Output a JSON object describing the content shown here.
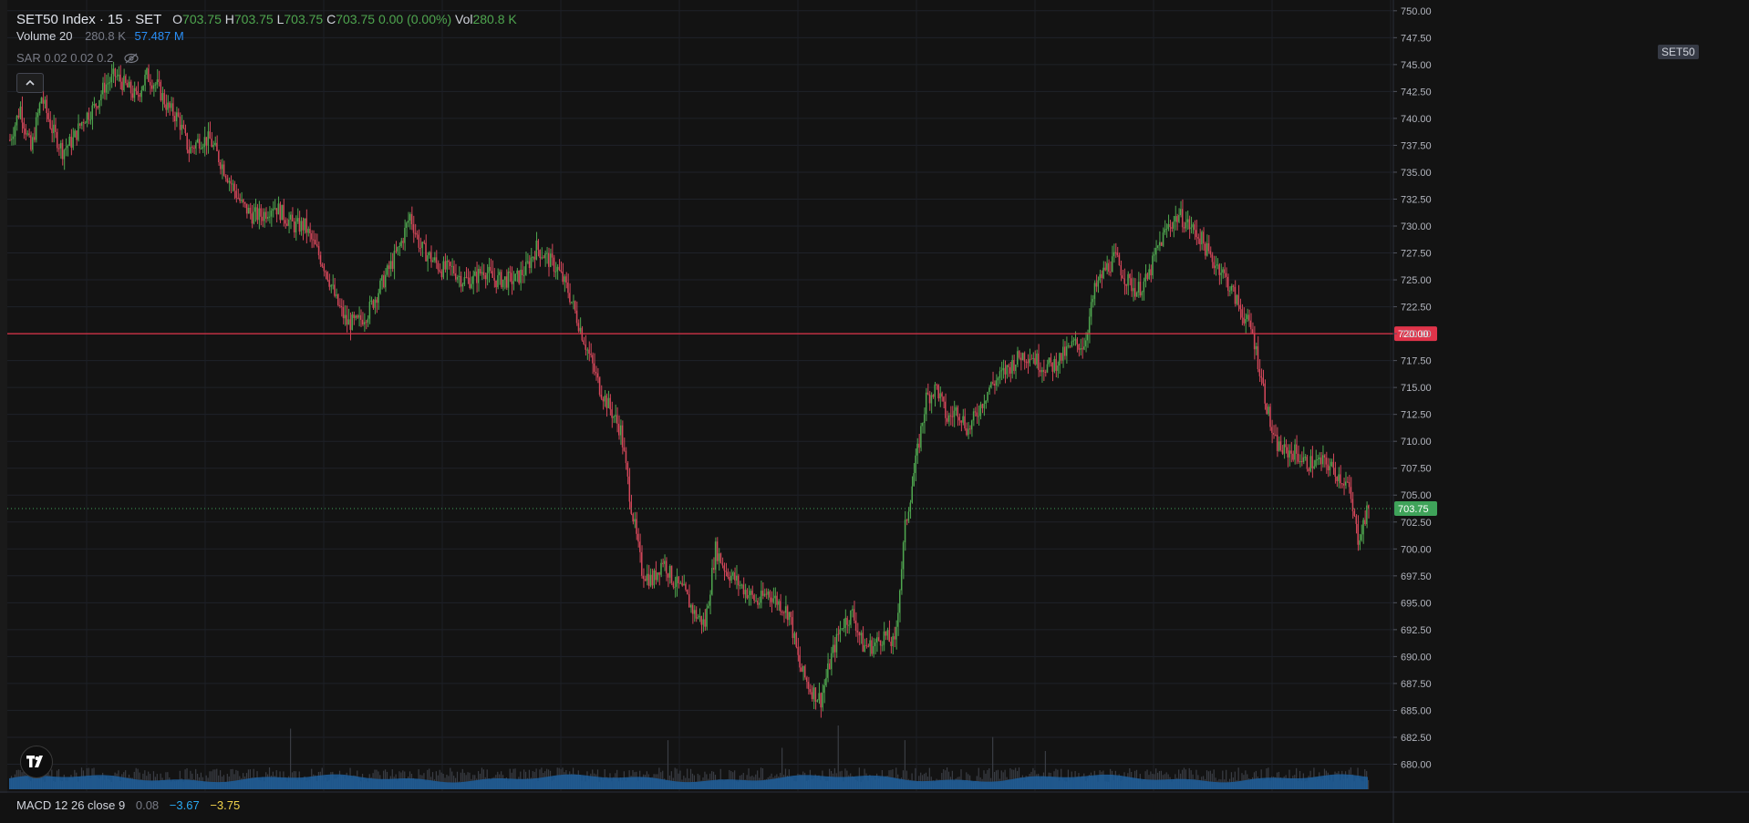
{
  "header": {
    "symbol": "SET50 Index · 15 · SET",
    "open_label": "O",
    "open": "703.75",
    "high_label": "H",
    "high": "703.75",
    "low_label": "L",
    "low": "703.75",
    "close_label": "C",
    "close": "703.75",
    "change": "0.00 (0.00%)",
    "vol_label": "Vol",
    "vol": "280.8 K"
  },
  "volume_indicator": {
    "name": "Volume 20",
    "value": "280.8 K",
    "ma": "57.487 M"
  },
  "sar_indicator": {
    "name": "SAR 0.02 0.02 0.2"
  },
  "macd_indicator": {
    "name": "MACD 12 26 close 9",
    "v1": "0.08",
    "v2": "−3.67",
    "v3": "−3.75"
  },
  "price_scale": {
    "symbol_tag": "SET50",
    "level_label": "720.00",
    "last_label": "703.75"
  },
  "colors": {
    "up": "#4fa64f",
    "down": "#d3475a",
    "hline": "#e0344a",
    "volume_ma": "#1e5f9c",
    "last": "#3fa35a"
  },
  "chart_data": {
    "type": "candlestick",
    "ylim": [
      677.5,
      751
    ],
    "yticks": [
      "750.00",
      "747.50",
      "745.00",
      "742.50",
      "740.00",
      "737.50",
      "735.00",
      "732.50",
      "730.00",
      "727.50",
      "725.00",
      "722.50",
      "720.00",
      "717.50",
      "715.00",
      "712.50",
      "710.00",
      "707.50",
      "705.00",
      "702.50",
      "700.00",
      "697.50",
      "695.00",
      "692.50",
      "690.00",
      "687.50",
      "685.00",
      "682.50",
      "680.00"
    ],
    "horizontal_line": 720.0,
    "last_price": 703.75,
    "close_path": [
      [
        0,
        738
      ],
      [
        6,
        741
      ],
      [
        12,
        737
      ],
      [
        18,
        742
      ],
      [
        24,
        739
      ],
      [
        30,
        737
      ],
      [
        36,
        738
      ],
      [
        42,
        740
      ],
      [
        48,
        741
      ],
      [
        54,
        743
      ],
      [
        60,
        744
      ],
      [
        66,
        743
      ],
      [
        72,
        742
      ],
      [
        78,
        744
      ],
      [
        84,
        743
      ],
      [
        90,
        741
      ],
      [
        96,
        740
      ],
      [
        102,
        737
      ],
      [
        108,
        738
      ],
      [
        114,
        738
      ],
      [
        120,
        736
      ],
      [
        126,
        734
      ],
      [
        132,
        732
      ],
      [
        138,
        731
      ],
      [
        144,
        731
      ],
      [
        150,
        732
      ],
      [
        156,
        731
      ],
      [
        162,
        730
      ],
      [
        168,
        730
      ],
      [
        174,
        728
      ],
      [
        180,
        726
      ],
      [
        186,
        723
      ],
      [
        192,
        721
      ],
      [
        198,
        721
      ],
      [
        204,
        722
      ],
      [
        210,
        724
      ],
      [
        216,
        726
      ],
      [
        222,
        728
      ],
      [
        228,
        731
      ],
      [
        234,
        728
      ],
      [
        240,
        727
      ],
      [
        246,
        726
      ],
      [
        252,
        726
      ],
      [
        258,
        725
      ],
      [
        264,
        725
      ],
      [
        270,
        726
      ],
      [
        276,
        725
      ],
      [
        282,
        725
      ],
      [
        288,
        725
      ],
      [
        294,
        726
      ],
      [
        300,
        728
      ],
      [
        306,
        727
      ],
      [
        312,
        726
      ],
      [
        318,
        724
      ],
      [
        324,
        721
      ],
      [
        330,
        718
      ],
      [
        336,
        715
      ],
      [
        342,
        713
      ],
      [
        348,
        711
      ],
      [
        354,
        704
      ],
      [
        360,
        698
      ],
      [
        366,
        697
      ],
      [
        372,
        699
      ],
      [
        378,
        697
      ],
      [
        384,
        696
      ],
      [
        390,
        694
      ],
      [
        396,
        693
      ],
      [
        402,
        700
      ],
      [
        408,
        698
      ],
      [
        414,
        697
      ],
      [
        420,
        696
      ],
      [
        426,
        695
      ],
      [
        432,
        696
      ],
      [
        438,
        695
      ],
      [
        444,
        694
      ],
      [
        450,
        689
      ],
      [
        456,
        687
      ],
      [
        462,
        686
      ],
      [
        468,
        690
      ],
      [
        474,
        693
      ],
      [
        480,
        694
      ],
      [
        486,
        691
      ],
      [
        492,
        691
      ],
      [
        498,
        692
      ],
      [
        504,
        691
      ],
      [
        510,
        702
      ],
      [
        516,
        708
      ],
      [
        522,
        714
      ],
      [
        528,
        715
      ],
      [
        534,
        712
      ],
      [
        540,
        713
      ],
      [
        546,
        711
      ],
      [
        552,
        713
      ],
      [
        558,
        715
      ],
      [
        564,
        716
      ],
      [
        570,
        717
      ],
      [
        576,
        718
      ],
      [
        582,
        718
      ],
      [
        588,
        717
      ],
      [
        594,
        717
      ],
      [
        600,
        718
      ],
      [
        606,
        719
      ],
      [
        612,
        719
      ],
      [
        618,
        724
      ],
      [
        624,
        726
      ],
      [
        630,
        727
      ],
      [
        636,
        725
      ],
      [
        642,
        724
      ],
      [
        648,
        725
      ],
      [
        654,
        728
      ],
      [
        660,
        730
      ],
      [
        666,
        731
      ],
      [
        672,
        730
      ],
      [
        678,
        729
      ],
      [
        684,
        727
      ],
      [
        690,
        726
      ],
      [
        696,
        724
      ],
      [
        702,
        722
      ],
      [
        708,
        720
      ],
      [
        714,
        715
      ],
      [
        720,
        710
      ],
      [
        726,
        709
      ],
      [
        732,
        709
      ],
      [
        738,
        708
      ],
      [
        744,
        708
      ],
      [
        750,
        708
      ],
      [
        756,
        707
      ],
      [
        762,
        706
      ],
      [
        768,
        701
      ],
      [
        774,
        703.75
      ]
    ],
    "volume_spikes": [
      [
        160,
        0.95
      ],
      [
        375,
        0.77
      ],
      [
        440,
        0.65
      ],
      [
        472,
        1.0
      ],
      [
        510,
        0.77
      ],
      [
        560,
        0.82
      ],
      [
        590,
        0.6
      ]
    ]
  }
}
